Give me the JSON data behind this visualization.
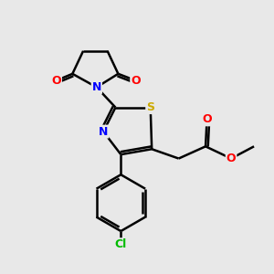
{
  "background_color": "#e8e8e8",
  "bond_color": "#000000",
  "bond_width": 1.8,
  "atom_colors": {
    "N": "#0000ff",
    "O": "#ff0000",
    "S": "#ccaa00",
    "Cl": "#00bb00",
    "C": "#000000"
  },
  "font_size": 9,
  "figsize": [
    3.0,
    3.0
  ],
  "dpi": 100
}
